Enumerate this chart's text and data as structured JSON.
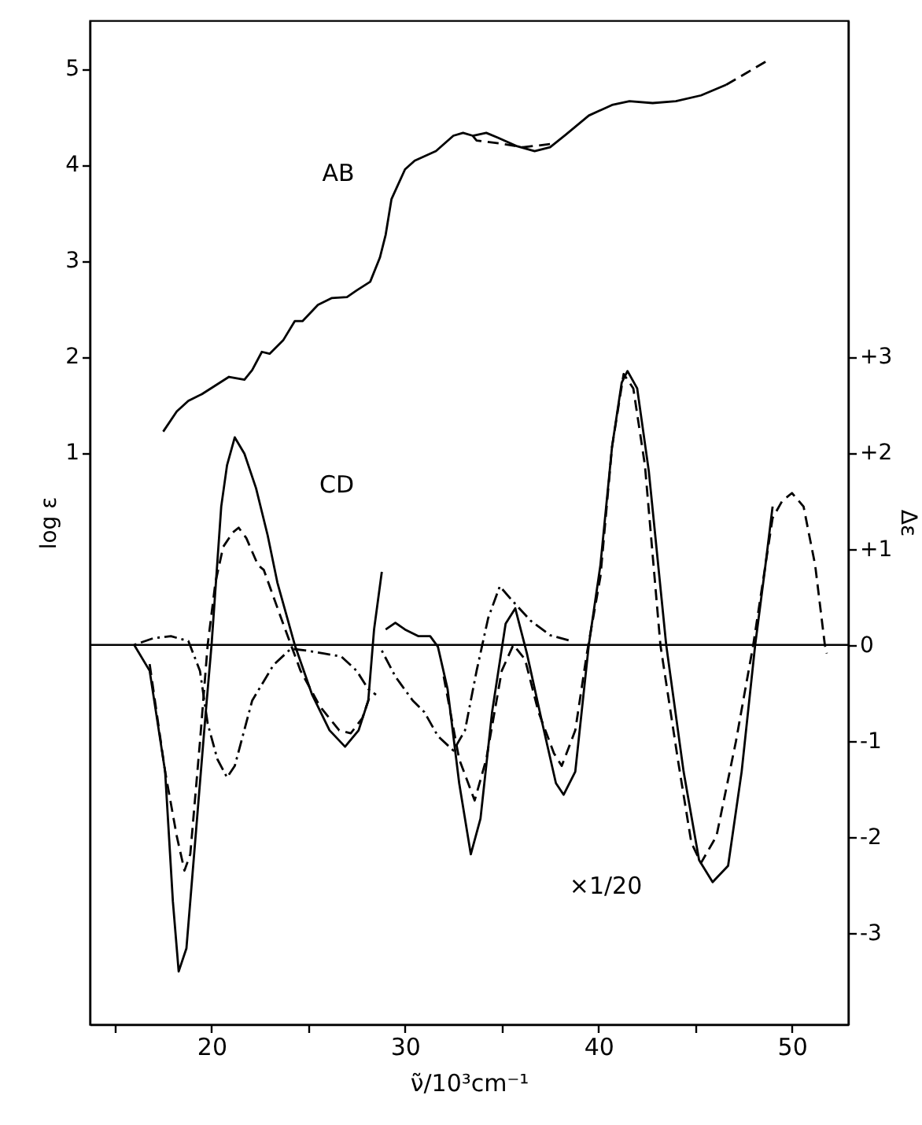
{
  "chart_data": {
    "type": "line",
    "xlabel": "ν̃/10³cm⁻¹",
    "ylabel": "log ε",
    "y2label": "Δε",
    "xlim": [
      13.7,
      52.9
    ],
    "xticks": [
      {
        "value": 15,
        "label": null
      },
      20,
      {
        "value": 25,
        "label": null
      },
      30,
      {
        "value": 35,
        "label": null
      },
      40,
      {
        "value": 45,
        "label": null
      },
      50
    ],
    "ylim": [
      -4.95,
      5.5
    ],
    "yticks": [
      1,
      2,
      3,
      4,
      5
    ],
    "y2lim": [
      -3.95,
      6.5
    ],
    "y2ticks": [
      -3,
      -2,
      -1,
      0,
      {
        "value": 1,
        "label": "+1"
      },
      {
        "value": 2,
        "label": "+2"
      },
      {
        "value": 3,
        "label": "+3"
      }
    ],
    "ref_lines": [
      {
        "axis": "y2",
        "value": 0,
        "color": "#000000"
      }
    ],
    "annotations": [
      "AB",
      "CD",
      "×1/20"
    ],
    "series": [
      {
        "color": "#000000",
        "line_style": "solid",
        "x": [
          17.5,
          18.2,
          18.8,
          19.5,
          20.9,
          21.7,
          22.1,
          22.6,
          23.0,
          23.7,
          24.3,
          24.7,
          25.5,
          26.2,
          27.0,
          27.5,
          28.2,
          28.7,
          29.0,
          29.3,
          30.0,
          30.5,
          31.6,
          32.5,
          33.0,
          33.5,
          34.2,
          34.8,
          35.8,
          36.7,
          37.5,
          38.3,
          39.5,
          40.7,
          41.6,
          42.8,
          44.0,
          45.3,
          46.6
        ],
        "values": [
          1.22,
          1.43,
          1.54,
          1.61,
          1.79,
          1.76,
          1.86,
          2.05,
          2.03,
          2.17,
          2.37,
          2.37,
          2.54,
          2.61,
          2.62,
          2.69,
          2.78,
          3.03,
          3.27,
          3.64,
          3.95,
          4.04,
          4.14,
          4.3,
          4.33,
          4.3,
          4.33,
          4.28,
          4.19,
          4.14,
          4.18,
          4.31,
          4.51,
          4.62,
          4.66,
          4.64,
          4.66,
          4.72,
          4.83
        ]
      },
      {
        "color": "#000000",
        "line_style": "dashed",
        "x": [
          33.5,
          33.7,
          34.9,
          36.1,
          37.8
        ],
        "values": [
          4.3,
          4.25,
          4.22,
          4.18,
          4.22
        ]
      },
      {
        "color": "#000000",
        "line_style": "dashed",
        "x": [
          46.6,
          47.7,
          48.8
        ],
        "values": [
          4.83,
          4.96,
          5.09
        ]
      },
      {
        "color": "#000000",
        "line_style": "solid",
        "axis": "y2",
        "x": [
          16.0,
          16.8,
          17.6,
          18.0,
          18.3,
          18.7,
          19.2,
          19.7,
          20.0,
          20.5,
          20.8,
          21.2,
          21.7,
          22.3,
          22.9,
          23.4,
          24.3,
          25.2,
          26.1,
          26.9,
          27.6,
          28.1,
          28.4,
          28.8
        ],
        "values": [
          0,
          -0.27,
          -1.32,
          -2.67,
          -3.4,
          -3.16,
          -1.93,
          -0.7,
          0,
          1.44,
          1.87,
          2.16,
          1.99,
          1.63,
          1.14,
          0.65,
          0,
          -0.52,
          -0.89,
          -1.06,
          -0.89,
          -0.58,
          0.16,
          0.76
        ]
      },
      {
        "color": "#000000",
        "line_style": "solid",
        "axis": "y2",
        "x": [
          29.0,
          29.5,
          30.0,
          30.7,
          31.3,
          31.7,
          32.2,
          32.8,
          33.4,
          33.9,
          34.5,
          35.2,
          35.7,
          36.3,
          37.1,
          37.8,
          38.2,
          38.8,
          39.5,
          40.1,
          40.7,
          41.2,
          41.5,
          42.0,
          42.6,
          43.5,
          44.4,
          45.2,
          45.9,
          46.7,
          47.4,
          48.1,
          48.6,
          49.0
        ],
        "values": [
          0.16,
          0.23,
          0.16,
          0.09,
          0.09,
          -0.02,
          -0.46,
          -1.44,
          -2.18,
          -1.81,
          -0.7,
          0.22,
          0.38,
          -0.09,
          -0.82,
          -1.44,
          -1.56,
          -1.32,
          0,
          0.83,
          2.06,
          2.73,
          2.85,
          2.67,
          1.81,
          0,
          -1.32,
          -2.24,
          -2.47,
          -2.3,
          -1.32,
          0,
          0.78,
          1.44
        ]
      },
      {
        "color": "#000000",
        "line_style": "dashed",
        "axis": "y2",
        "x": [
          16.8,
          17.6,
          18.2,
          18.6,
          18.9,
          19.4,
          19.8,
          20.2,
          20.6,
          21.1,
          21.4,
          21.8,
          22.4,
          22.7,
          23.7,
          24.6,
          25.6,
          26.6,
          27.2,
          27.8,
          28.2
        ],
        "values": [
          -0.2,
          -1.32,
          -1.99,
          -2.35,
          -2.18,
          -1.01,
          0,
          0.65,
          1.02,
          1.17,
          1.22,
          1.11,
          0.83,
          0.78,
          0.22,
          -0.27,
          -0.64,
          -0.89,
          -0.92,
          -0.76,
          -0.52
        ]
      },
      {
        "color": "#000000",
        "line_style": "dashed",
        "axis": "y2",
        "x": [
          32.0,
          32.8,
          33.6,
          34.2,
          35.0,
          35.6,
          36.2,
          36.9,
          37.7,
          38.1,
          38.8,
          39.4,
          40.1,
          40.7,
          41.3,
          41.8,
          42.4,
          43.2,
          44.1,
          44.8,
          45.3,
          46.1,
          47.1,
          48.0,
          49.0,
          49.5,
          50.0,
          50.6,
          51.2,
          51.7,
          51.8
        ],
        "values": [
          -0.33,
          -1.19,
          -1.62,
          -1.19,
          -0.27,
          0,
          -0.15,
          -0.7,
          -1.13,
          -1.26,
          -0.89,
          -0.09,
          0.71,
          2.06,
          2.82,
          2.67,
          1.87,
          0,
          -1.19,
          -2.06,
          -2.27,
          -1.99,
          -1.01,
          0,
          1.32,
          1.5,
          1.58,
          1.44,
          0.83,
          0,
          -0.09
        ]
      },
      {
        "color": "#000000",
        "line_style": "dotted",
        "axis": "y2",
        "x": [
          16.0,
          17.0,
          17.9,
          18.8,
          19.4,
          19.8,
          20.3,
          20.8,
          21.2,
          22.1,
          23.2,
          24.1,
          24.9,
          25.8,
          26.7,
          27.5,
          28.1,
          28.5
        ],
        "values": [
          0,
          0.07,
          0.09,
          0.04,
          -0.27,
          -0.82,
          -1.19,
          -1.38,
          -1.26,
          -0.58,
          -0.21,
          -0.04,
          -0.06,
          -0.09,
          -0.12,
          -0.27,
          -0.46,
          -0.52
        ]
      },
      {
        "color": "#000000",
        "line_style": "dotted",
        "axis": "y2",
        "x": [
          28.8,
          29.5,
          30.4,
          31.0,
          31.7,
          32.5,
          33.1,
          33.7,
          34.3,
          34.9,
          35.5,
          36.5,
          37.5,
          38.6
        ],
        "values": [
          -0.06,
          -0.33,
          -0.58,
          -0.7,
          -0.95,
          -1.1,
          -0.89,
          -0.27,
          0.28,
          0.61,
          0.47,
          0.25,
          0.1,
          0.04
        ]
      }
    ]
  }
}
